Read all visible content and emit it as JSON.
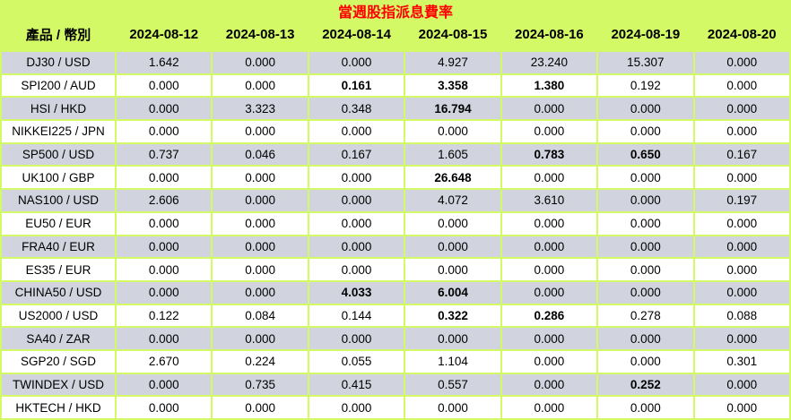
{
  "title": "當週股指派息費率",
  "colors": {
    "page_background": "#d3f966",
    "row_alt_gray": "#d1d4de",
    "row_white": "#ffffff",
    "title_red": "#ff0000",
    "text_black": "#000000"
  },
  "table": {
    "product_header": "產品 / 幣別",
    "date_headers": [
      "2024-08-12",
      "2024-08-13",
      "2024-08-14",
      "2024-08-15",
      "2024-08-16",
      "2024-08-19",
      "2024-08-20"
    ],
    "rows": [
      {
        "product": "DJ30 / USD",
        "values": [
          "1.642",
          "0.000",
          "0.000",
          "4.927",
          "23.240",
          "15.307",
          "0.000"
        ],
        "bold": []
      },
      {
        "product": "SPI200 / AUD",
        "values": [
          "0.000",
          "0.000",
          "0.161",
          "3.358",
          "1.380",
          "0.192",
          "0.000"
        ],
        "bold": [
          2,
          3,
          4
        ]
      },
      {
        "product": "HSI / HKD",
        "values": [
          "0.000",
          "3.323",
          "0.348",
          "16.794",
          "0.000",
          "0.000",
          "0.000"
        ],
        "bold": [
          3
        ]
      },
      {
        "product": "NIKKEI225 / JPN",
        "values": [
          "0.000",
          "0.000",
          "0.000",
          "0.000",
          "0.000",
          "0.000",
          "0.000"
        ],
        "bold": []
      },
      {
        "product": "SP500 / USD",
        "values": [
          "0.737",
          "0.046",
          "0.167",
          "1.605",
          "0.783",
          "0.650",
          "0.167"
        ],
        "bold": [
          4,
          5
        ]
      },
      {
        "product": "UK100 / GBP",
        "values": [
          "0.000",
          "0.000",
          "0.000",
          "26.648",
          "0.000",
          "0.000",
          "0.000"
        ],
        "bold": [
          3
        ]
      },
      {
        "product": "NAS100 / USD",
        "values": [
          "2.606",
          "0.000",
          "0.000",
          "4.072",
          "3.610",
          "0.000",
          "0.197"
        ],
        "bold": []
      },
      {
        "product": "EU50 / EUR",
        "values": [
          "0.000",
          "0.000",
          "0.000",
          "0.000",
          "0.000",
          "0.000",
          "0.000"
        ],
        "bold": []
      },
      {
        "product": "FRA40 / EUR",
        "values": [
          "0.000",
          "0.000",
          "0.000",
          "0.000",
          "0.000",
          "0.000",
          "0.000"
        ],
        "bold": []
      },
      {
        "product": "ES35 / EUR",
        "values": [
          "0.000",
          "0.000",
          "0.000",
          "0.000",
          "0.000",
          "0.000",
          "0.000"
        ],
        "bold": []
      },
      {
        "product": "CHINA50 / USD",
        "values": [
          "0.000",
          "0.000",
          "4.033",
          "6.004",
          "0.000",
          "0.000",
          "0.000"
        ],
        "bold": [
          2,
          3
        ]
      },
      {
        "product": "US2000 / USD",
        "values": [
          "0.122",
          "0.084",
          "0.144",
          "0.322",
          "0.286",
          "0.278",
          "0.088"
        ],
        "bold": [
          3,
          4
        ]
      },
      {
        "product": "SA40 / ZAR",
        "values": [
          "0.000",
          "0.000",
          "0.000",
          "0.000",
          "0.000",
          "0.000",
          "0.000"
        ],
        "bold": []
      },
      {
        "product": "SGP20 / SGD",
        "values": [
          "2.670",
          "0.224",
          "0.055",
          "1.104",
          "0.000",
          "0.000",
          "0.301"
        ],
        "bold": []
      },
      {
        "product": "TWINDEX / USD",
        "values": [
          "0.000",
          "0.735",
          "0.415",
          "0.557",
          "0.000",
          "0.252",
          "0.000"
        ],
        "bold": [
          5
        ]
      },
      {
        "product": "HKTECH / HKD",
        "values": [
          "0.000",
          "0.000",
          "0.000",
          "0.000",
          "0.000",
          "0.000",
          "0.000"
        ],
        "bold": []
      }
    ]
  }
}
